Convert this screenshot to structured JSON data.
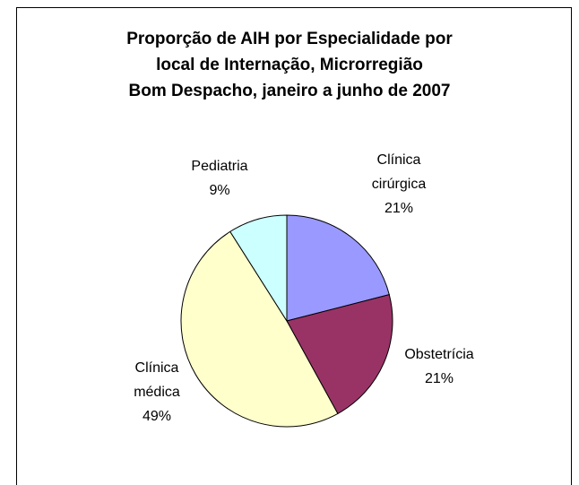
{
  "chart_data": {
    "type": "pie",
    "title": [
      "Proporção de AIH por Especialidade por",
      "local de Internação, Microrregião",
      "Bom Despacho, janeiro a junho de 2007"
    ],
    "categories": [
      "Clínica cirúrgica",
      "Obstetrícia",
      "Clínica médica",
      "Pediatria"
    ],
    "values": [
      21,
      21,
      49,
      9
    ],
    "value_labels": [
      "21%",
      "21%",
      "49%",
      "9%"
    ],
    "colors": [
      "#9999ff",
      "#993366",
      "#ffffcc",
      "#ccffff"
    ]
  }
}
